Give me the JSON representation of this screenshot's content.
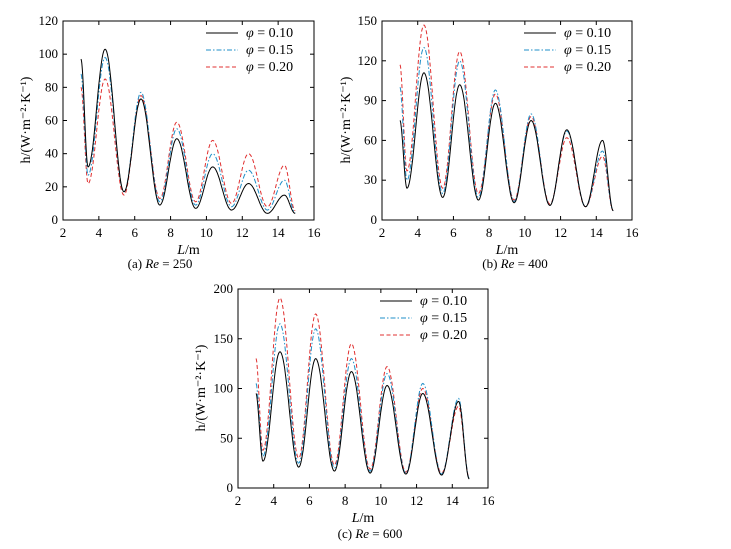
{
  "chart_data": [
    {
      "type": "line",
      "caption": "(a) Re = 250",
      "caption_prefix": "(a) ",
      "caption_re": "Re",
      "caption_value": "= 250",
      "xlabel_var": "L",
      "xlabel_unit": "/m",
      "ylabel": "h/(W·m⁻²·K⁻¹)",
      "xlim": [
        2,
        16
      ],
      "ylim": [
        0,
        120
      ],
      "xticks": [
        2,
        4,
        6,
        8,
        10,
        12,
        14,
        16
      ],
      "yticks": [
        0,
        20,
        40,
        60,
        80,
        100,
        120
      ],
      "legend_position": "top-right",
      "series": [
        {
          "name": "φ = 0.10",
          "symbol": "φ",
          "value": "= 0.10",
          "style": "solid",
          "color": "#000000",
          "peaks": [
            97,
            103,
            73,
            49,
            32,
            22,
            15
          ],
          "troughs": [
            32,
            17,
            9,
            7,
            6,
            4
          ]
        },
        {
          "name": "φ = 0.15",
          "symbol": "φ",
          "value": "= 0.15",
          "style": "dashdot",
          "color": "#1f8fc8",
          "peaks": [
            88,
            98,
            77,
            55,
            40,
            30,
            24
          ],
          "troughs": [
            27,
            17,
            11,
            9,
            8,
            6
          ]
        },
        {
          "name": "φ = 0.20",
          "symbol": "φ",
          "value": "= 0.20",
          "style": "dashed",
          "color": "#e03030",
          "peaks": [
            80,
            85,
            75,
            59,
            48,
            40,
            33
          ],
          "troughs": [
            22,
            15,
            13,
            11,
            10,
            8
          ]
        }
      ]
    },
    {
      "type": "line",
      "caption": "(b) Re = 400",
      "caption_prefix": "(b) ",
      "caption_re": "Re",
      "caption_value": "= 400",
      "xlabel_var": "L",
      "xlabel_unit": "/m",
      "ylabel": "h/(W·m⁻²·K⁻¹)",
      "xlim": [
        2,
        16
      ],
      "ylim": [
        0,
        150
      ],
      "xticks": [
        2,
        4,
        6,
        8,
        10,
        12,
        14,
        16
      ],
      "yticks": [
        0,
        30,
        60,
        90,
        120,
        150
      ],
      "legend_position": "top-right",
      "series": [
        {
          "name": "φ = 0.10",
          "symbol": "φ",
          "value": "= 0.10",
          "style": "solid",
          "color": "#000000",
          "peaks": [
            75,
            111,
            102,
            88,
            75,
            68,
            60
          ],
          "troughs": [
            24,
            17,
            15,
            13,
            11,
            10
          ]
        },
        {
          "name": "φ = 0.15",
          "symbol": "φ",
          "value": "= 0.15",
          "style": "dashdot",
          "color": "#1f8fc8",
          "peaks": [
            100,
            130,
            120,
            98,
            80,
            67,
            52
          ],
          "troughs": [
            30,
            20,
            17,
            14,
            11,
            10
          ]
        },
        {
          "name": "φ = 0.20",
          "symbol": "φ",
          "value": "= 0.20",
          "style": "dashed",
          "color": "#e03030",
          "peaks": [
            117,
            147,
            127,
            95,
            78,
            62,
            48
          ],
          "troughs": [
            37,
            24,
            20,
            15,
            12,
            10
          ]
        }
      ]
    },
    {
      "type": "line",
      "caption": "(c) Re = 600",
      "caption_prefix": "(c) ",
      "caption_re": "Re",
      "caption_value": "= 600",
      "xlabel_var": "L",
      "xlabel_unit": "/m",
      "ylabel": "h/(W·m⁻²·K⁻¹)",
      "xlim": [
        2,
        16
      ],
      "ylim": [
        0,
        200
      ],
      "xticks": [
        2,
        4,
        6,
        8,
        10,
        12,
        14,
        16
      ],
      "yticks": [
        0,
        50,
        100,
        150,
        200
      ],
      "legend_position": "top-right",
      "series": [
        {
          "name": "φ = 0.10",
          "symbol": "φ",
          "value": "= 0.10",
          "style": "solid",
          "color": "#000000",
          "peaks": [
            95,
            137,
            130,
            117,
            103,
            95,
            87
          ],
          "troughs": [
            27,
            21,
            17,
            15,
            14,
            13
          ]
        },
        {
          "name": "φ = 0.15",
          "symbol": "φ",
          "value": "= 0.15",
          "style": "dashdot",
          "color": "#1f8fc8",
          "peaks": [
            105,
            165,
            160,
            130,
            115,
            105,
            90
          ],
          "troughs": [
            32,
            25,
            20,
            17,
            15,
            14
          ]
        },
        {
          "name": "φ = 0.20",
          "symbol": "φ",
          "value": "= 0.20",
          "style": "dashed",
          "color": "#e03030",
          "peaks": [
            130,
            191,
            175,
            145,
            122,
            100,
            82
          ],
          "troughs": [
            38,
            30,
            23,
            19,
            16,
            15
          ]
        }
      ]
    }
  ]
}
